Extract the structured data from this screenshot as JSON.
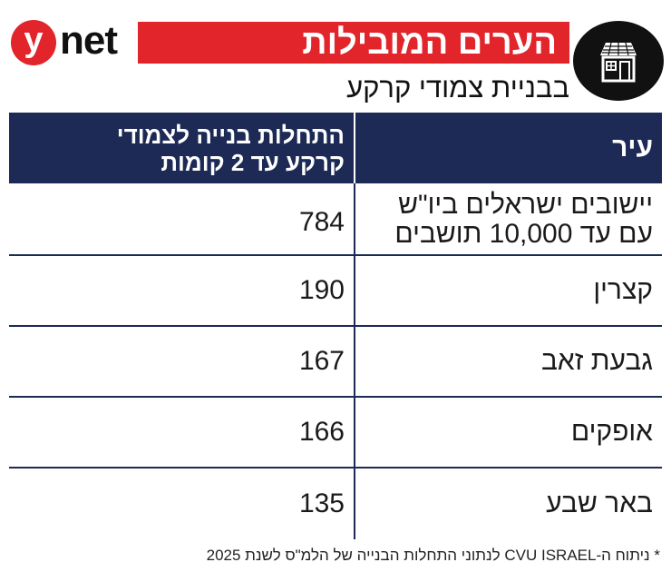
{
  "brand": {
    "logo_letter": "y",
    "logo_word": "net",
    "accent": "#e2242b",
    "header_color": "#1c2a55"
  },
  "header": {
    "title": "הערים המובילות",
    "subtitle": "בבניית צמודי קרקע",
    "icon": "house-icon"
  },
  "table": {
    "columns": {
      "city": "עיר",
      "value_line1": "התחלות בנייה לצמודי",
      "value_line2": "קרקע עד 2 קומות"
    },
    "rows": [
      {
        "city_line1": "יישובים ישראלים ביו\"ש",
        "city_line2": "עם עד 10,000 תושבים",
        "value": "784"
      },
      {
        "city": "קצרין",
        "value": "190"
      },
      {
        "city": "גבעת זאב",
        "value": "167"
      },
      {
        "city": "אופקים",
        "value": "166"
      },
      {
        "city": "באר שבע",
        "value": "135"
      }
    ]
  },
  "footnote": "* ניתוח ה-CVU ISRAEL לנתוני התחלות הבנייה של הלמ\"ס לשנת 2025",
  "chart_data": {
    "type": "table",
    "title": "הערים המובילות",
    "subtitle": "בבניית צמודי קרקע",
    "columns": [
      "עיר",
      "התחלות בנייה לצמודי קרקע עד 2 קומות"
    ],
    "categories": [
      "יישובים ישראלים ביו\"ש עם עד 10,000 תושבים",
      "קצרין",
      "גבעת זאב",
      "אופקים",
      "באר שבע"
    ],
    "values": [
      784,
      190,
      167,
      166,
      135
    ]
  }
}
